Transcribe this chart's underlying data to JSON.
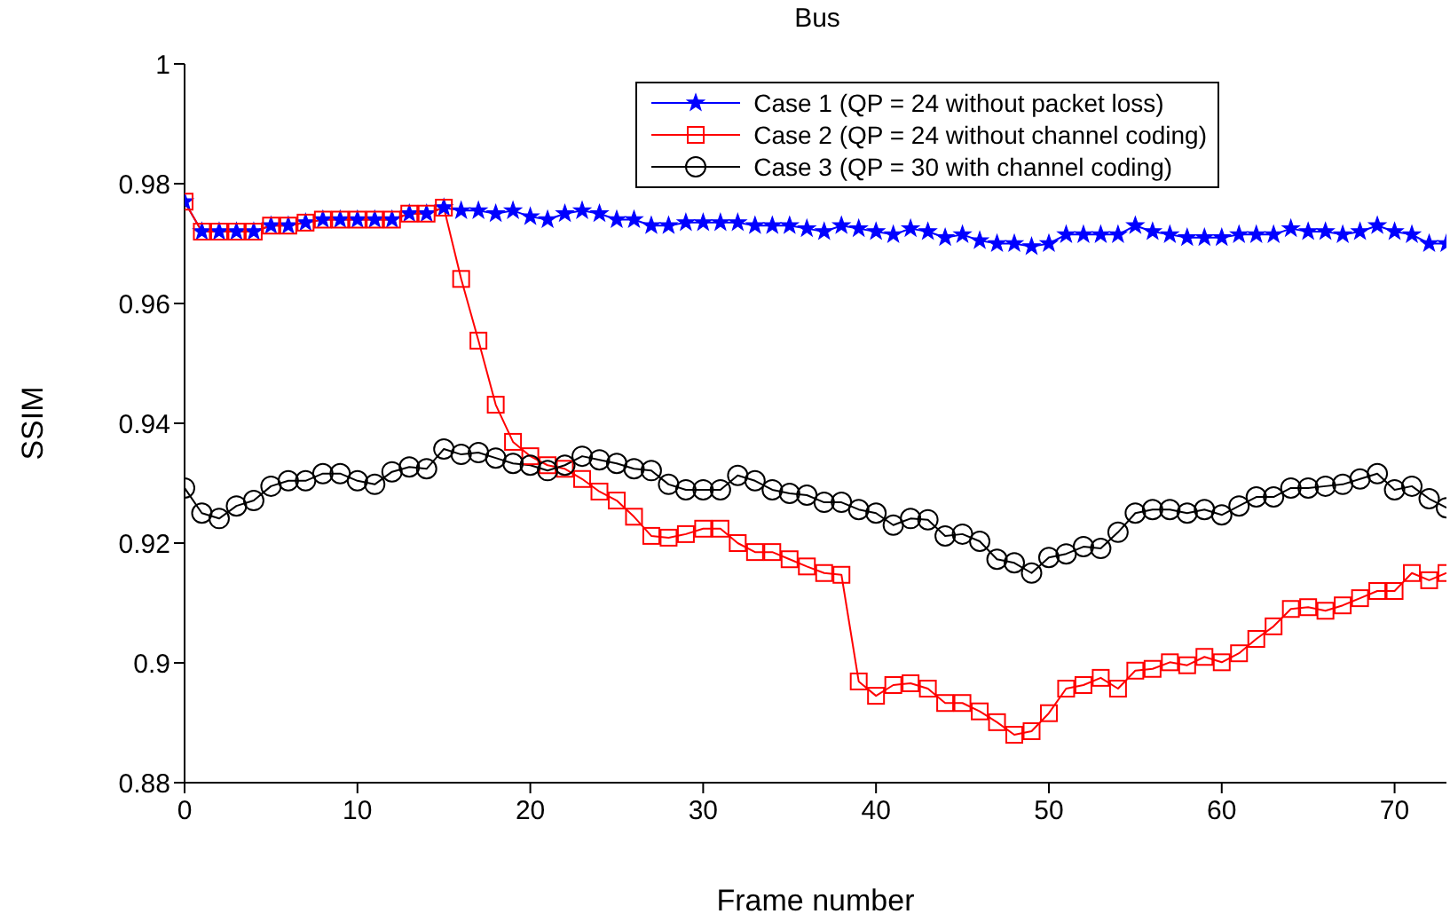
{
  "chart_data": {
    "type": "line",
    "title": "Bus",
    "xlabel": "Frame number",
    "ylabel": "SSIM",
    "x": [
      0,
      1,
      2,
      3,
      4,
      5,
      6,
      7,
      8,
      9,
      10,
      11,
      12,
      13,
      14,
      15,
      16,
      17,
      18,
      19,
      20,
      21,
      22,
      23,
      24,
      25,
      26,
      27,
      28,
      29,
      30,
      31,
      32,
      33,
      34,
      35,
      36,
      37,
      38,
      39,
      40,
      41,
      42,
      43,
      44,
      45,
      46,
      47,
      48,
      49,
      50,
      51,
      52,
      53,
      54,
      55,
      56,
      57,
      58,
      59,
      60,
      61,
      62,
      63,
      64,
      65,
      66,
      67,
      68,
      69,
      70,
      71,
      72,
      73
    ],
    "series": [
      {
        "name": "Case 1 (QP = 24 without packet loss)",
        "color": "#0000ff",
        "marker": "star",
        "values": [
          0.977,
          0.972,
          0.972,
          0.972,
          0.972,
          0.973,
          0.973,
          0.9735,
          0.974,
          0.974,
          0.974,
          0.974,
          0.974,
          0.975,
          0.975,
          0.976,
          0.9755,
          0.9755,
          0.975,
          0.9755,
          0.9745,
          0.974,
          0.975,
          0.9755,
          0.975,
          0.974,
          0.974,
          0.973,
          0.973,
          0.9735,
          0.9735,
          0.9735,
          0.9735,
          0.973,
          0.973,
          0.973,
          0.9725,
          0.972,
          0.973,
          0.9725,
          0.972,
          0.9715,
          0.9725,
          0.972,
          0.971,
          0.9715,
          0.9705,
          0.97,
          0.97,
          0.9695,
          0.97,
          0.9715,
          0.9715,
          0.9715,
          0.9715,
          0.973,
          0.972,
          0.9715,
          0.971,
          0.971,
          0.971,
          0.9715,
          0.9715,
          0.9715,
          0.9725,
          0.972,
          0.972,
          0.9715,
          0.972,
          0.973,
          0.972,
          0.9715,
          0.97,
          0.97
        ]
      },
      {
        "name": "Case 2 (QP = 24 without channel coding)",
        "color": "#ff0000",
        "marker": "square",
        "values": [
          0.977,
          0.972,
          0.972,
          0.972,
          0.972,
          0.973,
          0.973,
          0.9735,
          0.974,
          0.974,
          0.974,
          0.974,
          0.974,
          0.975,
          0.975,
          0.976,
          0.9641,
          0.9538,
          0.9431,
          0.9369,
          0.9345,
          0.933,
          0.9324,
          0.9307,
          0.9286,
          0.9271,
          0.9244,
          0.9212,
          0.9209,
          0.9215,
          0.9224,
          0.9224,
          0.92,
          0.9185,
          0.9185,
          0.9173,
          0.9161,
          0.915,
          0.9147,
          0.8969,
          0.8945,
          0.8963,
          0.8966,
          0.8957,
          0.8933,
          0.8933,
          0.8919,
          0.8901,
          0.888,
          0.8886,
          0.8916,
          0.8957,
          0.8963,
          0.8975,
          0.8957,
          0.8987,
          0.899,
          0.9001,
          0.8996,
          0.901,
          0.9001,
          0.9016,
          0.904,
          0.9061,
          0.909,
          0.9093,
          0.9087,
          0.9096,
          0.9108,
          0.912,
          0.912,
          0.915,
          0.9138,
          0.915
        ]
      },
      {
        "name": "Case 3 (QP = 30 with channel coding)",
        "color": "#000000",
        "marker": "circle",
        "values": [
          0.9292,
          0.925,
          0.9241,
          0.9262,
          0.9271,
          0.9295,
          0.9304,
          0.9304,
          0.9316,
          0.9316,
          0.9304,
          0.9298,
          0.9319,
          0.9327,
          0.9324,
          0.9357,
          0.9348,
          0.9351,
          0.9342,
          0.9333,
          0.933,
          0.9321,
          0.933,
          0.9345,
          0.9339,
          0.9333,
          0.9324,
          0.9321,
          0.9298,
          0.9289,
          0.9289,
          0.9289,
          0.9313,
          0.9304,
          0.9289,
          0.9283,
          0.928,
          0.9268,
          0.9268,
          0.9256,
          0.925,
          0.923,
          0.9241,
          0.9239,
          0.9212,
          0.9215,
          0.9203,
          0.9173,
          0.9167,
          0.915,
          0.9176,
          0.9182,
          0.9194,
          0.9191,
          0.9218,
          0.925,
          0.9256,
          0.9256,
          0.925,
          0.9256,
          0.9247,
          0.9262,
          0.9277,
          0.9277,
          0.9292,
          0.9292,
          0.9295,
          0.9298,
          0.9307,
          0.9316,
          0.9289,
          0.9295,
          0.9274,
          0.9259
        ]
      }
    ],
    "xlim": [
      0,
      73
    ],
    "xticks": [
      0,
      10,
      20,
      30,
      40,
      50,
      60,
      70
    ],
    "ylim": [
      0.88,
      1
    ],
    "yticks": [
      0.88,
      0.9,
      0.92,
      0.94,
      0.96,
      0.98,
      1
    ],
    "grid": false,
    "legend": "top right",
    "line_style": "solid"
  }
}
